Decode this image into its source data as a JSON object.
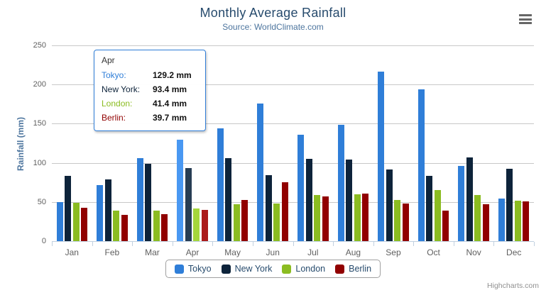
{
  "chart_data": {
    "type": "bar",
    "title": "Monthly Average Rainfall",
    "subtitle": "Source: WorldClimate.com",
    "xlabel": "",
    "ylabel": "Rainfall (mm)",
    "ylim": [
      0,
      250
    ],
    "yticks": [
      0,
      50,
      100,
      150,
      200,
      250
    ],
    "grid": true,
    "legend_position": "bottom",
    "categories": [
      "Jan",
      "Feb",
      "Mar",
      "Apr",
      "May",
      "Jun",
      "Jul",
      "Aug",
      "Sep",
      "Oct",
      "Nov",
      "Dec"
    ],
    "series": [
      {
        "name": "Tokyo",
        "color": "#2f7ed8",
        "values": [
          49.9,
          71.5,
          106.4,
          129.2,
          144.0,
          176.0,
          135.6,
          148.5,
          216.4,
          194.1,
          95.6,
          54.4
        ]
      },
      {
        "name": "New York",
        "color": "#0d233a",
        "values": [
          83.6,
          78.8,
          98.5,
          93.4,
          106.0,
          84.5,
          105.0,
          104.3,
          91.2,
          83.5,
          106.6,
          92.3
        ]
      },
      {
        "name": "London",
        "color": "#8bbc21",
        "values": [
          48.9,
          38.8,
          39.3,
          41.4,
          47.0,
          48.3,
          59.0,
          59.6,
          52.4,
          65.2,
          59.3,
          51.2
        ]
      },
      {
        "name": "Berlin",
        "color": "#910000",
        "values": [
          42.4,
          33.2,
          34.5,
          39.7,
          52.6,
          75.5,
          57.4,
          60.4,
          47.6,
          39.1,
          46.8,
          51.1
        ]
      }
    ]
  },
  "tooltip": {
    "category": "Apr",
    "hover_index": 3,
    "border_color": "#2f7ed8",
    "rows": [
      {
        "label": "Tokyo:",
        "value": "129.2 mm",
        "color": "#2f7ed8"
      },
      {
        "label": "New York:",
        "value": "93.4 mm",
        "color": "#0d233a"
      },
      {
        "label": "London:",
        "value": "41.4 mm",
        "color": "#8bbc21"
      },
      {
        "label": "Berlin:",
        "value": "39.7 mm",
        "color": "#910000"
      }
    ]
  },
  "toolbar": {
    "export_menu_icon": "hamburger-menu"
  },
  "credits": {
    "label": "Highcharts.com"
  }
}
